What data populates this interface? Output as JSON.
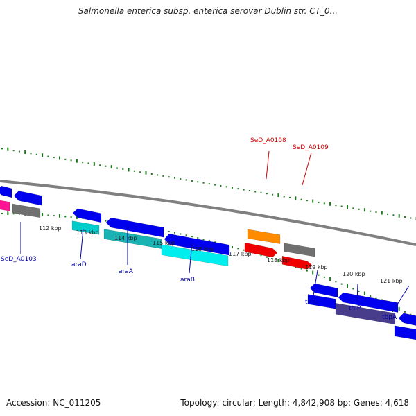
{
  "header": {
    "title": "Salmonella enterica subsp. enterica serovar Dublin str. CT_0..."
  },
  "footer": {
    "accession": "Accession: NC_011205",
    "topology": "Topology: circular; Length: 4,842,908 bp; Genes: 4,618"
  },
  "colors": {
    "backbone": "#808080",
    "forward_gene": "#0000ee",
    "grey_gene": "#707070",
    "cyan_gene": "#00cccc",
    "orange_gene": "#ff8c00",
    "red_gene": "#ee0000",
    "magenta_gene": "#ff1493",
    "slate_gene": "#483d8b",
    "label_blue": "#0000aa",
    "label_red": "#cc0000",
    "gc_track": "#1a7a1a"
  },
  "ticks": [
    {
      "label": "112 kbp"
    },
    {
      "label": "113 kbp"
    },
    {
      "label": "114 kbp"
    },
    {
      "label": "115 kbp"
    },
    {
      "label": "116 kbp"
    },
    {
      "label": "117 kbp"
    },
    {
      "label": "118 kbp"
    },
    {
      "label": "119 kbp"
    },
    {
      "label": "120 kbp"
    },
    {
      "label": "121 kbp"
    }
  ],
  "gene_labels": [
    {
      "text": "SeD_A0103",
      "color": "#0000aa"
    },
    {
      "text": "araD",
      "color": "#0000aa"
    },
    {
      "text": "araA",
      "color": "#0000aa"
    },
    {
      "text": "araB",
      "color": "#0000aa"
    },
    {
      "text": "thiQ",
      "color": "#0000aa"
    },
    {
      "text": "thiP",
      "color": "#0000aa"
    },
    {
      "text": "tbpA",
      "color": "#0000aa"
    },
    {
      "text": "SeD_A0108",
      "color": "#cc0000"
    },
    {
      "text": "SeD_A0109",
      "color": "#cc0000"
    }
  ]
}
